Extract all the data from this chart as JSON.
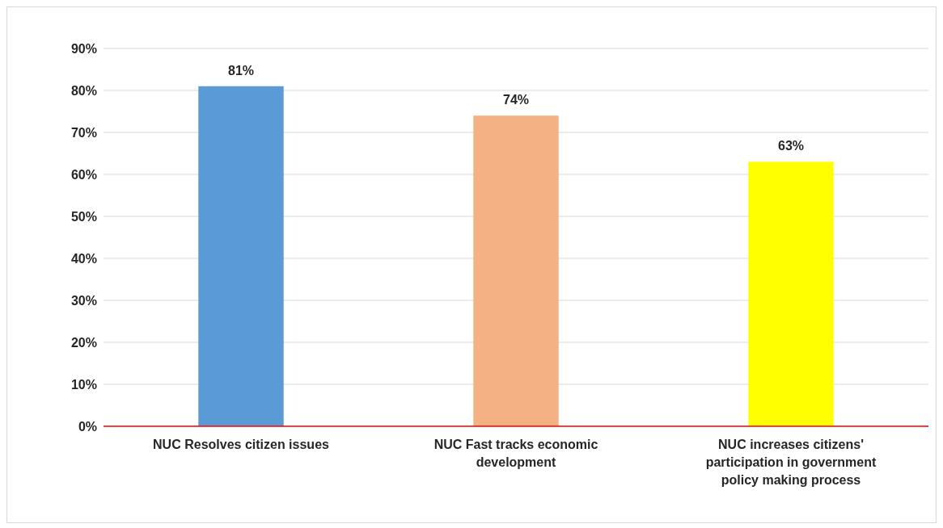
{
  "chart_data": {
    "type": "bar",
    "categories": [
      "NUC Resolves citizen issues",
      "NUC Fast tracks economic development",
      "NUC increases citizens' participation in government policy making process"
    ],
    "values": [
      81,
      74,
      63
    ],
    "colors": [
      "#5b9bd5",
      "#f4b183",
      "#ffff00"
    ],
    "ylim": [
      0,
      90
    ],
    "yticks": [
      {
        "value": 0,
        "label": "0%"
      },
      {
        "value": 10,
        "label": "10%"
      },
      {
        "value": 20,
        "label": "20%"
      },
      {
        "value": 30,
        "label": "30%"
      },
      {
        "value": 40,
        "label": "40%"
      },
      {
        "value": 50,
        "label": "50%"
      },
      {
        "value": 60,
        "label": "60%"
      },
      {
        "value": 70,
        "label": "70%"
      },
      {
        "value": 80,
        "label": "80%"
      },
      {
        "value": 90,
        "label": "90%"
      }
    ],
    "value_labels": [
      "81%",
      "74%",
      "63%"
    ],
    "grid": "y"
  }
}
